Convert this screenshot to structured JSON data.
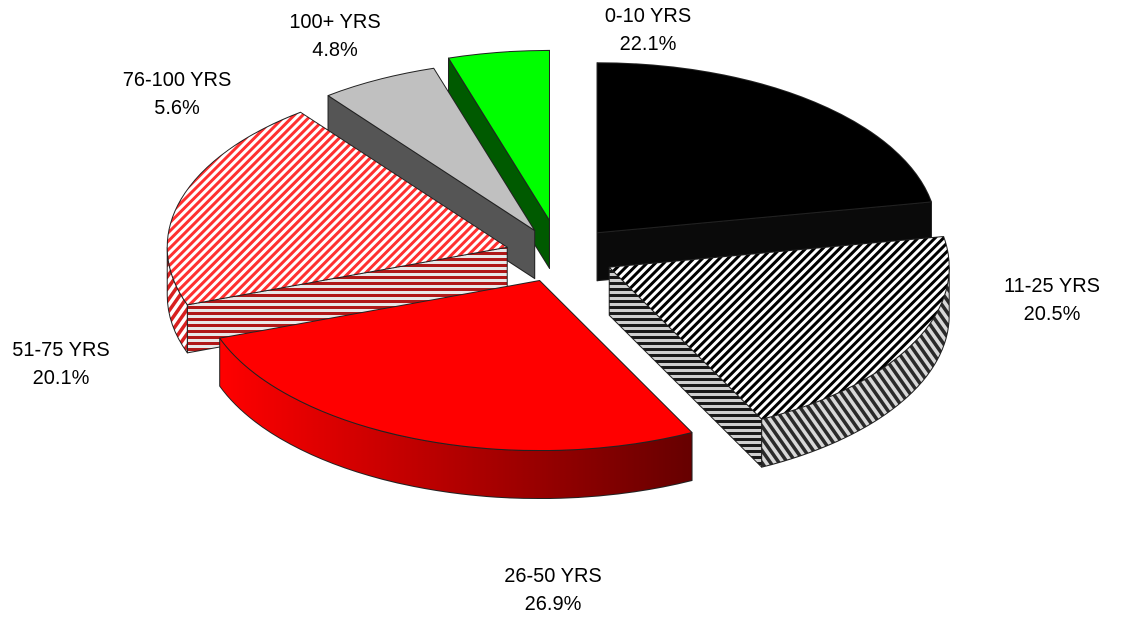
{
  "chart_data": {
    "type": "pie",
    "title": "",
    "legend": "none",
    "start_angle_deg": 90,
    "direction": "clockwise",
    "slices": [
      {
        "label": "0-10 YRS",
        "percent_label": "22.1%",
        "value": 22.1,
        "color": "#000000",
        "side_color": "#000000",
        "pattern": "solid"
      },
      {
        "label": "11-25 YRS",
        "percent_label": "20.5%",
        "value": 20.5,
        "color": "#ffffff",
        "side_color": "#3a3a3a",
        "pattern": "diagonal-stripes-black-white"
      },
      {
        "label": "26-50 YRS",
        "percent_label": "26.9%",
        "value": 26.9,
        "color": "#ff0000",
        "side_color": "#9a0000",
        "pattern": "solid"
      },
      {
        "label": "51-75 YRS",
        "percent_label": "20.1%",
        "value": 20.1,
        "color": "#ffffff",
        "side_color": "#9a1a1a",
        "pattern": "diagonal-stripes-red-white"
      },
      {
        "label": "76-100 YRS",
        "percent_label": "5.6%",
        "value": 5.6,
        "color": "#c0c0c0",
        "side_color": "#4a4a4a",
        "pattern": "solid"
      },
      {
        "label": "100+ YRS",
        "percent_label": "4.8%",
        "value": 4.8,
        "color": "#00ff00",
        "side_color": "#006400",
        "pattern": "solid"
      }
    ]
  }
}
